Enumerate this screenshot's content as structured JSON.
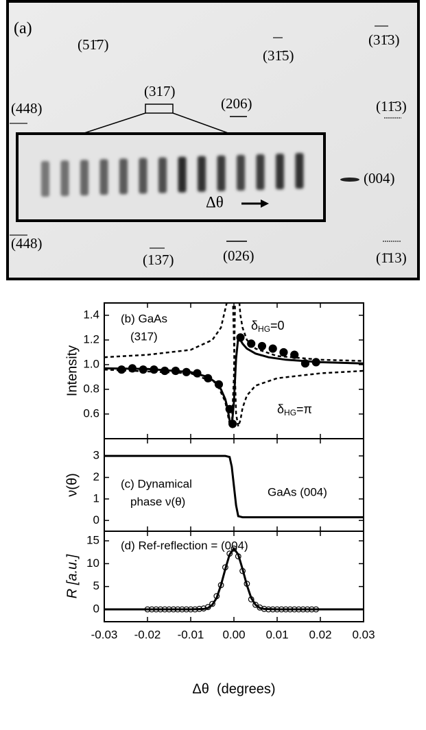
{
  "figure_a": {
    "panel_label": "(a)",
    "spots": [
      "(51̄7)",
      "(31̄5)",
      "(31̄3)",
      "(317)",
      "(206)",
      "(448)",
      "(11̄3)",
      "(004)",
      "(448)",
      "(137)",
      "(026)",
      "(1̄13)"
    ],
    "inset_label": "Δθ"
  },
  "chart_data": [
    {
      "type": "line",
      "texts": [
        "(b) GaAs",
        "(317)"
      ],
      "y_label": "Intensity",
      "annotations": [
        {
          "base": "δ",
          "sub": "HG",
          "tail": "=0"
        },
        {
          "base": "δ",
          "sub": "HG",
          "tail": "=π"
        }
      ],
      "xlim": [
        -0.03,
        0.03
      ],
      "ylim": [
        0.4,
        1.5
      ],
      "yticks": [
        0.6,
        0.8,
        {
          "value": 1.0,
          "label": "1.0"
        },
        1.2,
        1.4
      ],
      "series": [
        {
          "mode": "dots",
          "color": "#000",
          "x": [
            -0.026,
            -0.0235,
            -0.021,
            -0.0185,
            -0.016,
            -0.0135,
            -0.011,
            -0.0085,
            -0.006,
            -0.0035,
            -0.001,
            -0.0003,
            0.0015,
            0.004,
            0.0065,
            0.009,
            0.0115,
            0.014,
            0.0165,
            0.019
          ],
          "values": [
            0.96,
            0.97,
            0.96,
            0.96,
            0.95,
            0.95,
            0.94,
            0.93,
            0.89,
            0.84,
            0.64,
            0.52,
            1.22,
            1.17,
            1.15,
            1.13,
            1.1,
            1.08,
            1.01,
            1.02
          ]
        },
        {
          "mode": "solid",
          "color": "#000",
          "x": [
            -0.03,
            -0.02,
            -0.01,
            -0.006,
            -0.004,
            -0.003,
            -0.002,
            -0.0015,
            -0.001,
            -0.0005,
            0,
            0.0005,
            0.001,
            0.0015,
            0.002,
            0.003,
            0.005,
            0.008,
            0.012,
            0.02,
            0.03
          ],
          "values": [
            0.97,
            0.965,
            0.94,
            0.9,
            0.85,
            0.8,
            0.72,
            0.65,
            0.55,
            0.5,
            0.7,
            1.05,
            1.22,
            1.2,
            1.17,
            1.13,
            1.09,
            1.06,
            1.04,
            1.02,
            1.01
          ]
        },
        {
          "mode": "dashed",
          "color": "#000",
          "x": [
            -0.03,
            -0.02,
            -0.01,
            -0.005,
            -0.003,
            -0.002,
            -0.001,
            -0.0005,
            0,
            0.0005,
            0.001,
            0.0015,
            0.002,
            0.003,
            0.005,
            0.01,
            0.02,
            0.03
          ],
          "values": [
            1.06,
            1.08,
            1.12,
            1.2,
            1.3,
            1.45,
            1.6,
            1.9,
            1.2,
            0.6,
            0.5,
            0.55,
            0.65,
            0.75,
            0.83,
            0.89,
            0.93,
            0.95
          ]
        },
        {
          "mode": "dashed",
          "color": "#000",
          "x": [
            -0.03,
            -0.01,
            -0.004,
            -0.002,
            -0.001,
            -0.0005,
            0,
            0.0003,
            0.0008,
            0.0015,
            0.002,
            0.003,
            0.005,
            0.01,
            0.02,
            0.03
          ],
          "values": [
            0.96,
            0.93,
            0.85,
            0.7,
            0.52,
            0.5,
            0.9,
            1.6,
            1.7,
            1.4,
            1.3,
            1.2,
            1.13,
            1.07,
            1.04,
            1.03
          ]
        }
      ]
    },
    {
      "type": "line",
      "texts": [
        "(c) Dynamical",
        "phase ν(θ)",
        "GaAs (004)"
      ],
      "y_label": "ν(θ)",
      "xlim": [
        -0.03,
        0.03
      ],
      "ylim": [
        -0.5,
        3.8
      ],
      "yticks": [
        0,
        1,
        2,
        3
      ],
      "series": [
        {
          "mode": "solid",
          "color": "#000",
          "x": [
            -0.03,
            -0.002,
            -0.001,
            -0.0005,
            0,
            0.0005,
            0.001,
            0.002,
            0.03
          ],
          "values": [
            3,
            3,
            2.95,
            2.5,
            1.6,
            0.7,
            0.2,
            0.15,
            0.15
          ]
        }
      ]
    },
    {
      "type": "line",
      "texts": [
        "(d) Ref-reflection = (004)"
      ],
      "y_label": "R [a.u.]",
      "x_label": "Δθ  (degrees)",
      "xlim": [
        -0.03,
        0.03
      ],
      "xticks": [
        -0.03,
        -0.02,
        -0.01,
        {
          "value": 0,
          "label": "0.00"
        },
        0.01,
        0.02,
        0.03
      ],
      "ylim": [
        -2.7,
        17.1
      ],
      "yticks": [
        0,
        5,
        10,
        15
      ],
      "series": [
        {
          "mode": "circles",
          "color": "#000",
          "x": [
            -0.02,
            -0.019,
            -0.018,
            -0.017,
            -0.016,
            -0.015,
            -0.014,
            -0.013,
            -0.012,
            -0.011,
            -0.01,
            -0.009,
            -0.008,
            -0.007,
            -0.006,
            -0.005,
            -0.004,
            -0.003,
            -0.002,
            -0.001,
            0,
            0.001,
            0.002,
            0.003,
            0.004,
            0.005,
            0.006,
            0.007,
            0.008,
            0.009,
            0.01,
            0.011,
            0.012,
            0.013,
            0.014,
            0.015,
            0.016,
            0.017,
            0.018,
            0.019
          ],
          "values": [
            0,
            0,
            0,
            0,
            0,
            0,
            0,
            0,
            0,
            0,
            0,
            0,
            0.1,
            0.2,
            0.5,
            1.2,
            2.9,
            5.3,
            9.2,
            12.2,
            13.3,
            11.6,
            8.4,
            5.6,
            2.2,
            1.0,
            0.4,
            0.1,
            0,
            0,
            0,
            0,
            0,
            0,
            0,
            0,
            0,
            0,
            0,
            0
          ]
        },
        {
          "mode": "solid",
          "color": "#000",
          "x": [
            -0.03,
            -0.01,
            -0.007,
            -0.006,
            -0.005,
            -0.004,
            -0.003,
            -0.002,
            -0.001,
            0,
            0.001,
            0.002,
            0.003,
            0.004,
            0.005,
            0.006,
            0.007,
            0.01,
            0.03
          ],
          "values": [
            0,
            0,
            0.1,
            0.3,
            1.0,
            2.5,
            5.3,
            8.8,
            12.0,
            13.3,
            12.0,
            8.8,
            5.3,
            2.5,
            1.0,
            0.3,
            0.1,
            0,
            0
          ]
        }
      ]
    }
  ]
}
